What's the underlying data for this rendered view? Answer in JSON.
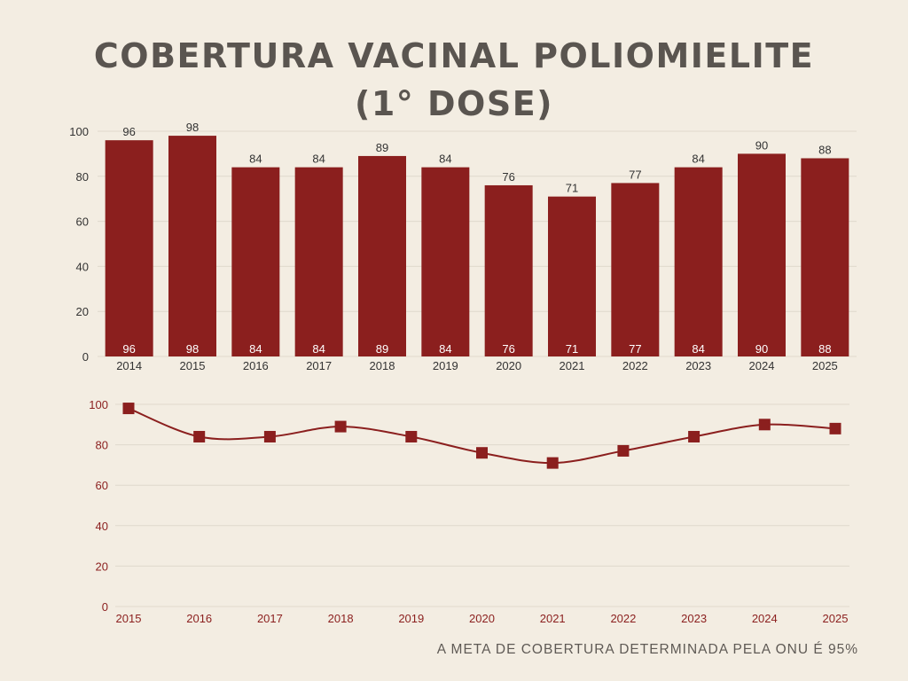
{
  "title_line1": "COBERTURA VACINAL POLIOMIELITE",
  "title_line2": "(1° DOSE)",
  "footnote": "A META DE COBERTURA DETERMINADA PELA ONU É 95%",
  "colors": {
    "background": "#f3ede2",
    "bar": "#8b1f1e",
    "line": "#8b1f1e",
    "title": "#5a5550",
    "axis_text": "#333333",
    "line_axis_text": "#8b1f1e",
    "grid": "#e0d9cc"
  },
  "chart_data": [
    {
      "type": "bar",
      "categories": [
        "2014",
        "2015",
        "2016",
        "2017",
        "2018",
        "2019",
        "2020",
        "2021",
        "2022",
        "2023",
        "2024",
        "2025"
      ],
      "values": [
        96,
        98,
        84,
        84,
        89,
        84,
        76,
        71,
        77,
        84,
        90,
        88
      ],
      "yticks": [
        0,
        20,
        40,
        60,
        80,
        100
      ],
      "ylim": [
        0,
        100
      ],
      "data_labels": "above and inside base",
      "grid": true
    },
    {
      "type": "line",
      "categories": [
        "2015",
        "2016",
        "2017",
        "2018",
        "2019",
        "2020",
        "2021",
        "2022",
        "2023",
        "2024",
        "2025"
      ],
      "values": [
        98,
        84,
        84,
        89,
        84,
        76,
        71,
        77,
        84,
        90,
        88
      ],
      "yticks": [
        0,
        20,
        40,
        60,
        80,
        100
      ],
      "ylim": [
        0,
        100
      ],
      "marker": "square",
      "smooth": true,
      "grid": true
    }
  ]
}
